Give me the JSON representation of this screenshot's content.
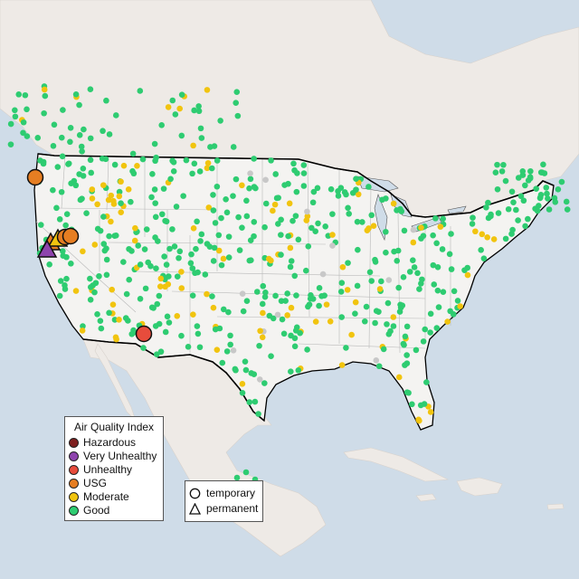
{
  "legend": {
    "title": "Air Quality Index",
    "categories": [
      {
        "label": "Hazardous",
        "color": "#7e2020"
      },
      {
        "label": "Very Unhealthy",
        "color": "#8e44ad"
      },
      {
        "label": "Unhealthy",
        "color": "#e74c3c"
      },
      {
        "label": "USG",
        "color": "#e67e22"
      },
      {
        "label": "Moderate",
        "color": "#f1c40f"
      },
      {
        "label": "Good",
        "color": "#2ecc71"
      }
    ]
  },
  "monitor_types": [
    {
      "label": "temporary",
      "icon": "circle-icon"
    },
    {
      "label": "permanent",
      "icon": "triangle-icon"
    }
  ],
  "colors": {
    "water": "#cfdce8",
    "land": "#eeeae6",
    "us_land": "#f4f3f1",
    "border": "#000000",
    "no_data": "#c8c8c8"
  }
}
